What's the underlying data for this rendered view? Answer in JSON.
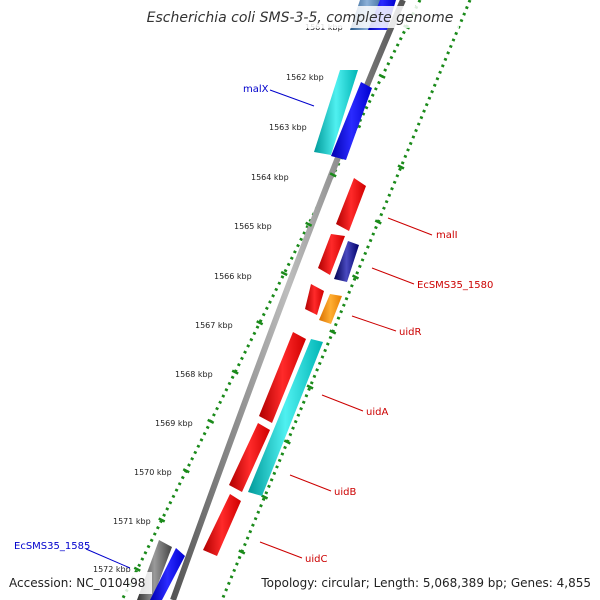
{
  "title": "Escherichia coli SMS-3-5, complete genome",
  "accession": "Accession: NC_010498",
  "summary": "Topology: circular; Length: 5,068,389 bp; Genes: 4,855",
  "ticks": [
    "1561 kbp",
    "1562 kbp",
    "1563 kbp",
    "1564 kbp",
    "1565 kbp",
    "1566 kbp",
    "1567 kbp",
    "1568 kbp",
    "1569 kbp",
    "1570 kbp",
    "1571 kbp",
    "1572 kbp"
  ],
  "genes": [
    {
      "name": "malX",
      "color": "#0000cc"
    },
    {
      "name": "malI",
      "color": "#cc0000"
    },
    {
      "name": "EcSMS35_1580",
      "color": "#cc0000"
    },
    {
      "name": "uidR",
      "color": "#cc0000"
    },
    {
      "name": "uidA",
      "color": "#cc0000"
    },
    {
      "name": "uidB",
      "color": "#cc0000"
    },
    {
      "name": "uidC",
      "color": "#cc0000"
    },
    {
      "name": "EcSMS35_1585",
      "color": "#0000cc"
    }
  ],
  "colors": {
    "backbone": "#808080",
    "dots": "#1a8a1a",
    "red_feature": "#ff0000",
    "cyan_feature": "#00cccc",
    "blue_feature": "#0000ee",
    "orange_feature": "#ff8c00",
    "navy_feature": "#000080",
    "gray_feature": "#555555"
  }
}
